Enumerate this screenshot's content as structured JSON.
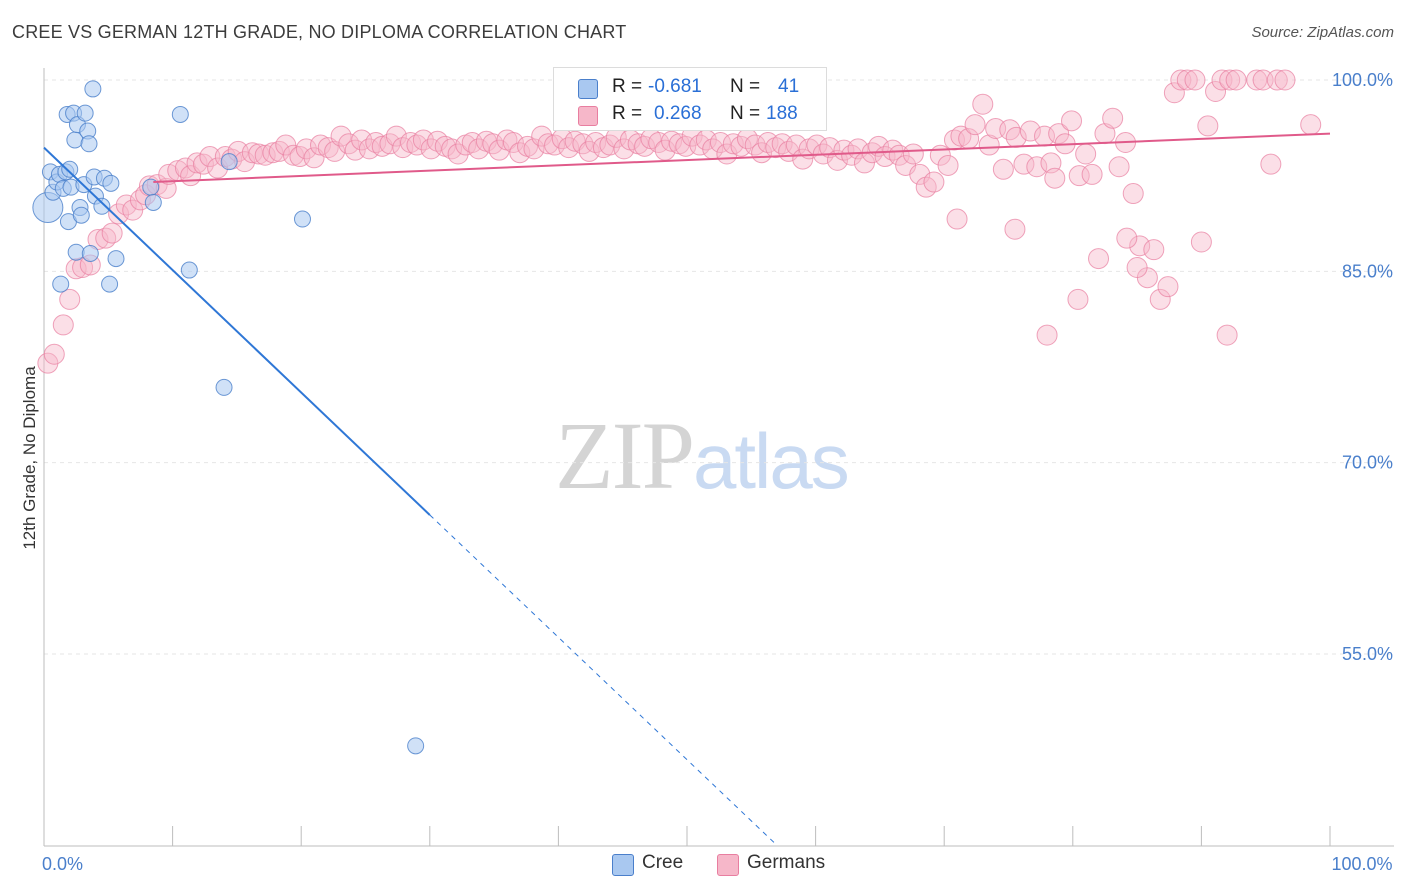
{
  "title": "CREE VS GERMAN 12TH GRADE, NO DIPLOMA CORRELATION CHART",
  "source": "Source: ZipAtlas.com",
  "watermark": {
    "zip": "ZIP",
    "atlas": "atlas"
  },
  "colors": {
    "cree_fill": "#a9c8f0",
    "cree_stroke": "#4a7fcb",
    "cree_line": "#2f77d6",
    "german_fill": "#f6b7c9",
    "german_stroke": "#e87ea0",
    "german_line": "#e05a8a",
    "tick_text": "#4a7fcb",
    "grid": "#e6e6e6"
  },
  "legend": {
    "rows": [
      {
        "r_label": "R =",
        "r_value": "-0.681",
        "n_label": "N =",
        "n_value": "41"
      },
      {
        "r_label": "R =",
        "r_value": "0.268",
        "n_label": "N =",
        "n_value": "188"
      }
    ]
  },
  "bottom_legend": [
    {
      "label": "Cree"
    },
    {
      "label": "Germans"
    }
  ],
  "chart_data": {
    "type": "scatter",
    "title": "CREE VS GERMAN 12TH GRADE, NO DIPLOMA CORRELATION CHART",
    "xlabel": "",
    "ylabel": "12th Grade, No Diploma",
    "xlim": [
      0,
      100
    ],
    "ylim": [
      41.5,
      102
    ],
    "y_ticks": [
      {
        "value": 55,
        "label": "55.0%"
      },
      {
        "value": 70,
        "label": "70.0%"
      },
      {
        "value": 85,
        "label": "85.0%"
      },
      {
        "value": 100,
        "label": "100.0%"
      }
    ],
    "x_tick_labels": [
      {
        "value": 0,
        "label": "0.0%"
      },
      {
        "value": 100,
        "label": "100.0%"
      }
    ],
    "x_minor_ticks": [
      0,
      10,
      20,
      30,
      40,
      50,
      60,
      70,
      80,
      90,
      100
    ],
    "series": [
      {
        "name": "Cree",
        "R": -0.681,
        "N": 41,
        "trend": {
          "x0": 0,
          "y0": 94.7,
          "x1": 30,
          "y1": 65.9,
          "dash_to_x": 57,
          "dash_to_y": 40
        },
        "points": [
          [
            0.3,
            90.0,
            3
          ],
          [
            0.5,
            92.8,
            1
          ],
          [
            0.7,
            91.2,
            1
          ],
          [
            1.0,
            92.0,
            1
          ],
          [
            1.2,
            92.6,
            1
          ],
          [
            1.3,
            84.0,
            1
          ],
          [
            1.5,
            91.5,
            1
          ],
          [
            1.7,
            92.8,
            1
          ],
          [
            1.8,
            97.3,
            1
          ],
          [
            1.9,
            88.9,
            1
          ],
          [
            2.0,
            93.0,
            1
          ],
          [
            2.1,
            91.6,
            1
          ],
          [
            2.3,
            97.4,
            1
          ],
          [
            2.4,
            95.3,
            1
          ],
          [
            2.5,
            86.5,
            1
          ],
          [
            2.6,
            96.5,
            1
          ],
          [
            2.8,
            90.0,
            1
          ],
          [
            2.9,
            89.4,
            1
          ],
          [
            3.1,
            91.8,
            1
          ],
          [
            3.2,
            97.4,
            1
          ],
          [
            3.4,
            96.0,
            1
          ],
          [
            3.5,
            95.0,
            1
          ],
          [
            3.6,
            86.4,
            1
          ],
          [
            3.8,
            99.3,
            1
          ],
          [
            3.9,
            92.4,
            1
          ],
          [
            4.0,
            90.9,
            1
          ],
          [
            4.5,
            90.1,
            1
          ],
          [
            4.7,
            92.3,
            1
          ],
          [
            5.1,
            84.0,
            1
          ],
          [
            5.2,
            91.9,
            1
          ],
          [
            5.6,
            86.0,
            1
          ],
          [
            8.3,
            91.6,
            1
          ],
          [
            8.5,
            90.4,
            1
          ],
          [
            10.6,
            97.3,
            1
          ],
          [
            11.3,
            85.1,
            1
          ],
          [
            14.0,
            75.9,
            1
          ],
          [
            14.4,
            93.6,
            1
          ],
          [
            20.1,
            89.1,
            1
          ],
          [
            28.9,
            47.8,
            1
          ]
        ]
      },
      {
        "name": "Germans",
        "R": 0.268,
        "N": 188,
        "trend": {
          "x0": 8.5,
          "y0": 92.0,
          "x1": 100,
          "y1": 95.8
        },
        "points": [
          [
            0.3,
            77.8,
            2
          ],
          [
            0.8,
            78.5,
            2
          ],
          [
            1.5,
            80.8,
            2
          ],
          [
            2.0,
            82.8,
            2
          ],
          [
            2.5,
            85.2,
            2
          ],
          [
            3.0,
            85.3,
            2
          ],
          [
            3.6,
            85.5,
            2
          ],
          [
            4.2,
            87.5,
            2
          ],
          [
            4.8,
            87.6,
            2
          ],
          [
            5.3,
            88.0,
            2
          ],
          [
            5.8,
            89.5,
            2
          ],
          [
            6.4,
            90.2,
            2
          ],
          [
            6.9,
            89.8,
            2
          ],
          [
            7.5,
            90.6,
            2
          ],
          [
            7.9,
            91.0,
            2
          ],
          [
            8.2,
            91.7,
            2
          ],
          [
            8.8,
            91.8,
            2
          ],
          [
            9.5,
            91.5,
            2
          ],
          [
            9.7,
            92.6,
            2
          ],
          [
            10.4,
            92.9,
            2
          ],
          [
            11.0,
            93.1,
            2
          ],
          [
            11.4,
            92.5,
            2
          ],
          [
            11.9,
            93.5,
            2
          ],
          [
            12.4,
            93.4,
            2
          ],
          [
            12.9,
            94.0,
            2
          ],
          [
            13.5,
            93.1,
            2
          ],
          [
            14.1,
            94.0,
            2
          ],
          [
            14.6,
            93.8,
            2
          ],
          [
            15.1,
            94.4,
            2
          ],
          [
            15.6,
            93.6,
            2
          ],
          [
            16.2,
            94.3,
            2
          ],
          [
            16.7,
            94.2,
            2
          ],
          [
            17.2,
            94.1,
            2
          ],
          [
            17.8,
            94.3,
            2
          ],
          [
            18.3,
            94.4,
            2
          ],
          [
            18.8,
            94.9,
            2
          ],
          [
            19.4,
            94.1,
            2
          ],
          [
            19.9,
            94.0,
            2
          ],
          [
            20.4,
            94.6,
            2
          ],
          [
            21.0,
            93.9,
            2
          ],
          [
            21.5,
            94.9,
            2
          ],
          [
            22.1,
            94.7,
            2
          ],
          [
            22.6,
            94.4,
            2
          ],
          [
            23.1,
            95.6,
            2
          ],
          [
            23.7,
            95.0,
            2
          ],
          [
            24.2,
            94.5,
            2
          ],
          [
            24.7,
            95.3,
            2
          ],
          [
            25.3,
            94.6,
            2
          ],
          [
            25.8,
            95.1,
            2
          ],
          [
            26.3,
            94.8,
            2
          ],
          [
            26.9,
            95.0,
            2
          ],
          [
            27.4,
            95.6,
            2
          ],
          [
            27.9,
            94.7,
            2
          ],
          [
            28.5,
            95.1,
            2
          ],
          [
            29.0,
            94.9,
            2
          ],
          [
            29.5,
            95.3,
            2
          ],
          [
            30.1,
            94.6,
            2
          ],
          [
            30.6,
            95.2,
            2
          ],
          [
            31.2,
            94.8,
            2
          ],
          [
            31.7,
            94.6,
            2
          ],
          [
            32.2,
            94.2,
            2
          ],
          [
            32.8,
            94.9,
            2
          ],
          [
            33.3,
            95.1,
            2
          ],
          [
            33.8,
            94.6,
            2
          ],
          [
            34.4,
            95.2,
            2
          ],
          [
            34.9,
            95.0,
            2
          ],
          [
            35.4,
            94.5,
            2
          ],
          [
            36.0,
            95.3,
            2
          ],
          [
            36.5,
            95.1,
            2
          ],
          [
            37.0,
            94.3,
            2
          ],
          [
            37.6,
            94.8,
            2
          ],
          [
            38.1,
            94.6,
            2
          ],
          [
            38.7,
            95.6,
            2
          ],
          [
            39.2,
            95.0,
            2
          ],
          [
            39.7,
            94.9,
            2
          ],
          [
            40.3,
            95.4,
            2
          ],
          [
            40.8,
            94.7,
            2
          ],
          [
            41.3,
            95.2,
            2
          ],
          [
            41.9,
            95.0,
            2
          ],
          [
            42.4,
            94.4,
            2
          ],
          [
            42.9,
            95.1,
            2
          ],
          [
            43.5,
            94.7,
            2
          ],
          [
            44.0,
            94.9,
            2
          ],
          [
            44.5,
            95.5,
            2
          ],
          [
            45.1,
            94.6,
            2
          ],
          [
            45.6,
            95.3,
            2
          ],
          [
            46.2,
            95.0,
            2
          ],
          [
            46.7,
            94.8,
            2
          ],
          [
            47.2,
            95.4,
            2
          ],
          [
            47.8,
            95.1,
            2
          ],
          [
            48.3,
            94.5,
            2
          ],
          [
            48.8,
            95.2,
            2
          ],
          [
            49.4,
            95.0,
            2
          ],
          [
            49.9,
            94.8,
            2
          ],
          [
            50.4,
            95.6,
            2
          ],
          [
            51.0,
            94.9,
            2
          ],
          [
            51.5,
            95.3,
            2
          ],
          [
            52.0,
            94.6,
            2
          ],
          [
            52.6,
            95.1,
            2
          ],
          [
            53.1,
            94.2,
            2
          ],
          [
            53.6,
            95.0,
            2
          ],
          [
            54.2,
            94.8,
            2
          ],
          [
            54.7,
            95.4,
            2
          ],
          [
            55.3,
            94.9,
            2
          ],
          [
            55.8,
            94.3,
            2
          ],
          [
            56.3,
            95.1,
            2
          ],
          [
            56.9,
            94.7,
            2
          ],
          [
            57.4,
            95.0,
            2
          ],
          [
            57.9,
            94.4,
            2
          ],
          [
            58.5,
            94.9,
            2
          ],
          [
            59.0,
            93.8,
            2
          ],
          [
            59.5,
            94.6,
            2
          ],
          [
            60.1,
            94.9,
            2
          ],
          [
            60.6,
            94.2,
            2
          ],
          [
            61.1,
            94.7,
            2
          ],
          [
            61.7,
            93.7,
            2
          ],
          [
            62.2,
            94.5,
            2
          ],
          [
            62.8,
            94.1,
            2
          ],
          [
            63.3,
            94.6,
            2
          ],
          [
            63.8,
            93.5,
            2
          ],
          [
            64.4,
            94.3,
            2
          ],
          [
            64.9,
            94.8,
            2
          ],
          [
            65.4,
            94.0,
            2
          ],
          [
            66.0,
            94.5,
            2
          ],
          [
            66.5,
            94.1,
            2
          ],
          [
            67.0,
            93.3,
            2
          ],
          [
            67.6,
            94.2,
            2
          ],
          [
            68.1,
            92.6,
            2
          ],
          [
            68.6,
            91.6,
            2
          ],
          [
            69.2,
            92.0,
            2
          ],
          [
            69.7,
            94.1,
            2
          ],
          [
            70.3,
            93.3,
            2
          ],
          [
            70.8,
            95.3,
            2
          ],
          [
            71.3,
            95.6,
            2
          ],
          [
            71.9,
            95.4,
            2
          ],
          [
            72.4,
            96.5,
            2
          ],
          [
            73.0,
            98.1,
            2
          ],
          [
            73.5,
            94.9,
            2
          ],
          [
            74.0,
            96.2,
            2
          ],
          [
            74.6,
            93.0,
            2
          ],
          [
            75.1,
            96.1,
            2
          ],
          [
            75.6,
            95.5,
            2
          ],
          [
            76.2,
            93.4,
            2
          ],
          [
            76.7,
            96.0,
            2
          ],
          [
            77.2,
            93.2,
            2
          ],
          [
            77.8,
            95.6,
            2
          ],
          [
            78.3,
            93.5,
            2
          ],
          [
            78.9,
            95.8,
            2
          ],
          [
            79.4,
            95.0,
            2
          ],
          [
            79.9,
            96.8,
            2
          ],
          [
            80.5,
            92.5,
            2
          ],
          [
            81.0,
            94.2,
            2
          ],
          [
            81.5,
            92.6,
            2
          ],
          [
            82.0,
            86.0,
            2
          ],
          [
            82.5,
            95.8,
            2
          ],
          [
            83.1,
            97.0,
            2
          ],
          [
            83.6,
            93.2,
            2
          ],
          [
            84.1,
            95.1,
            2
          ],
          [
            84.7,
            91.1,
            2
          ],
          [
            85.2,
            87.0,
            2
          ],
          [
            85.8,
            84.5,
            2
          ],
          [
            86.3,
            86.7,
            2
          ],
          [
            86.8,
            82.8,
            2
          ],
          [
            87.4,
            83.8,
            2
          ],
          [
            87.9,
            99.0,
            2
          ],
          [
            88.4,
            100.0,
            2
          ],
          [
            88.9,
            100.0,
            2
          ],
          [
            89.5,
            100.0,
            2
          ],
          [
            90.0,
            87.3,
            2
          ],
          [
            90.5,
            96.4,
            2
          ],
          [
            91.1,
            99.1,
            2
          ],
          [
            91.6,
            100.0,
            2
          ],
          [
            92.2,
            100.0,
            2
          ],
          [
            92.7,
            100.0,
            2
          ],
          [
            94.3,
            100.0,
            2
          ],
          [
            94.8,
            100.0,
            2
          ],
          [
            95.4,
            93.4,
            2
          ],
          [
            95.9,
            100.0,
            2
          ],
          [
            96.5,
            100.0,
            2
          ],
          [
            98.5,
            96.5,
            2
          ],
          [
            78.0,
            80.0,
            2
          ],
          [
            85.0,
            85.3,
            2
          ],
          [
            92.0,
            80.0,
            2
          ],
          [
            80.4,
            82.8,
            2
          ],
          [
            75.5,
            88.3,
            2
          ],
          [
            71.0,
            89.1,
            2
          ],
          [
            78.6,
            92.3,
            2
          ],
          [
            84.2,
            87.6,
            2
          ]
        ]
      }
    ]
  }
}
